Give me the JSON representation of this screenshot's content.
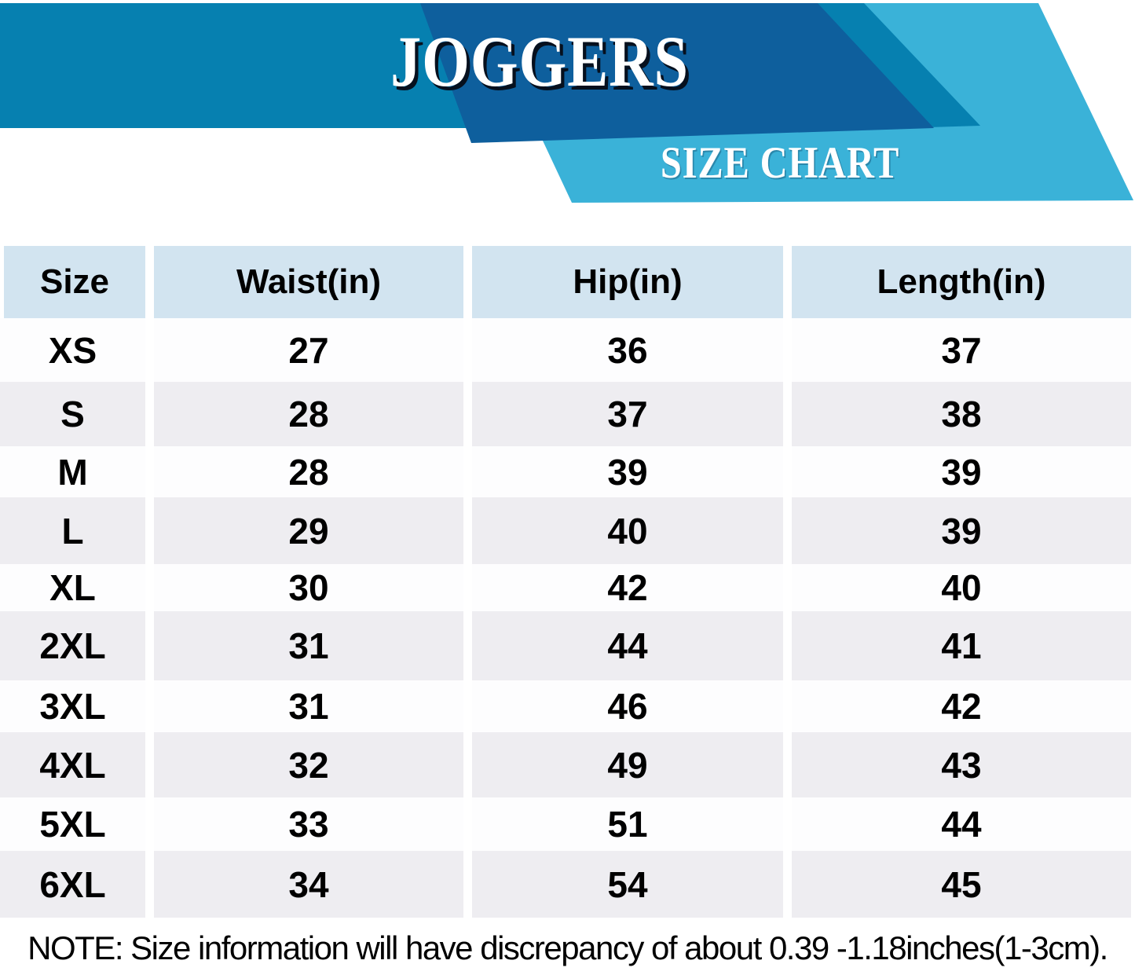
{
  "banner": {
    "title": "JOGGERS",
    "subtitle": "SIZE CHART"
  },
  "theme": {
    "medium_blue": "#0680b0",
    "dark_blue": "#0e5f9d",
    "light_blue": "#3ab2d8",
    "header_cell": "#d2e4f0",
    "row_alt": "#eeedf1",
    "row_plain": "#fdfdfe"
  },
  "table": {
    "headers": [
      "Size",
      "Waist(in)",
      "Hip(in)",
      "Length(in)"
    ],
    "rows": [
      {
        "size": "XS",
        "waist": "27",
        "hip": "36",
        "length": "37"
      },
      {
        "size": "S",
        "waist": "28",
        "hip": "37",
        "length": "38"
      },
      {
        "size": "M",
        "waist": "28",
        "hip": "39",
        "length": "39"
      },
      {
        "size": "L",
        "waist": "29",
        "hip": "40",
        "length": "39"
      },
      {
        "size": "XL",
        "waist": "30",
        "hip": "42",
        "length": "40"
      },
      {
        "size": "2XL",
        "waist": "31",
        "hip": "44",
        "length": "41"
      },
      {
        "size": "3XL",
        "waist": "31",
        "hip": "46",
        "length": "42"
      },
      {
        "size": "4XL",
        "waist": "32",
        "hip": "49",
        "length": "43"
      },
      {
        "size": "5XL",
        "waist": "33",
        "hip": "51",
        "length": "44"
      },
      {
        "size": "6XL",
        "waist": "34",
        "hip": "54",
        "length": "45"
      }
    ]
  },
  "note": "NOTE: Size information will have discrepancy of about 0.39 -1.18inches(1-3cm).",
  "chart_data": {
    "type": "table",
    "title": "JOGGERS SIZE CHART",
    "columns": [
      "Size",
      "Waist(in)",
      "Hip(in)",
      "Length(in)"
    ],
    "rows": [
      [
        "XS",
        27,
        36,
        37
      ],
      [
        "S",
        28,
        37,
        38
      ],
      [
        "M",
        28,
        39,
        39
      ],
      [
        "L",
        29,
        40,
        39
      ],
      [
        "XL",
        30,
        42,
        40
      ],
      [
        "2XL",
        31,
        44,
        41
      ],
      [
        "3XL",
        31,
        46,
        42
      ],
      [
        "4XL",
        32,
        49,
        43
      ],
      [
        "5XL",
        33,
        51,
        44
      ],
      [
        "6XL",
        34,
        54,
        45
      ]
    ],
    "note": "NOTE: Size information will have discrepancy of about 0.39 -1.18inches(1-3cm)."
  }
}
